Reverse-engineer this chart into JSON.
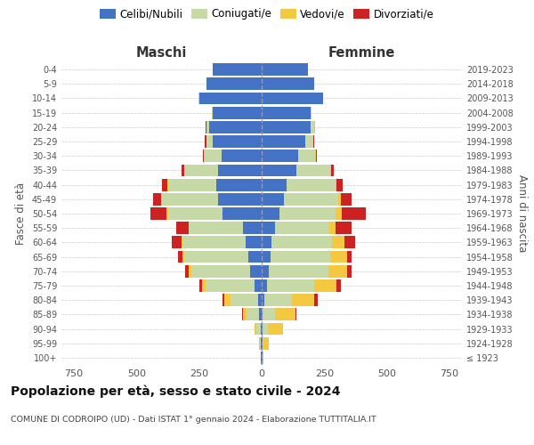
{
  "age_groups": [
    "100+",
    "95-99",
    "90-94",
    "85-89",
    "80-84",
    "75-79",
    "70-74",
    "65-69",
    "60-64",
    "55-59",
    "50-54",
    "45-49",
    "40-44",
    "35-39",
    "30-34",
    "25-29",
    "20-24",
    "15-19",
    "10-14",
    "5-9",
    "0-4"
  ],
  "birth_years": [
    "≤ 1923",
    "1924-1928",
    "1929-1933",
    "1934-1938",
    "1939-1943",
    "1944-1948",
    "1949-1953",
    "1954-1958",
    "1959-1963",
    "1964-1968",
    "1969-1973",
    "1974-1978",
    "1979-1983",
    "1984-1988",
    "1989-1993",
    "1994-1998",
    "1999-2003",
    "2004-2008",
    "2009-2013",
    "2014-2018",
    "2019-2023"
  ],
  "maschi": {
    "celibi": [
      2,
      3,
      5,
      10,
      15,
      30,
      45,
      55,
      65,
      75,
      155,
      175,
      180,
      175,
      160,
      195,
      210,
      195,
      250,
      220,
      195
    ],
    "coniugati": [
      2,
      5,
      15,
      50,
      110,
      195,
      235,
      255,
      250,
      215,
      220,
      225,
      195,
      135,
      70,
      25,
      10,
      3,
      2,
      0,
      0
    ],
    "vedovi": [
      0,
      2,
      8,
      15,
      25,
      15,
      10,
      8,
      5,
      3,
      5,
      3,
      2,
      0,
      0,
      2,
      2,
      0,
      0,
      0,
      0
    ],
    "divorziati": [
      0,
      0,
      2,
      5,
      5,
      10,
      15,
      15,
      40,
      50,
      65,
      30,
      20,
      10,
      5,
      5,
      2,
      0,
      0,
      0,
      0
    ]
  },
  "femmine": {
    "nubili": [
      2,
      3,
      5,
      5,
      10,
      20,
      30,
      35,
      40,
      55,
      70,
      90,
      100,
      140,
      145,
      175,
      195,
      195,
      245,
      210,
      185
    ],
    "coniugate": [
      2,
      5,
      20,
      50,
      110,
      190,
      235,
      240,
      240,
      215,
      225,
      215,
      195,
      135,
      70,
      30,
      15,
      5,
      2,
      0,
      0
    ],
    "vedove": [
      3,
      20,
      60,
      80,
      90,
      90,
      75,
      65,
      50,
      25,
      25,
      10,
      5,
      2,
      2,
      2,
      2,
      0,
      0,
      0,
      0
    ],
    "divorziate": [
      0,
      0,
      2,
      5,
      15,
      15,
      20,
      20,
      45,
      65,
      95,
      45,
      25,
      10,
      5,
      2,
      2,
      0,
      0,
      0,
      0
    ]
  },
  "colors": {
    "celibi": "#4472c4",
    "coniugati": "#c8d9a8",
    "vedovi": "#f5c842",
    "divorziati": "#cc2222"
  },
  "xlim": 800,
  "title": "Popolazione per età, sesso e stato civile - 2024",
  "subtitle": "COMUNE DI CODROIPO (UD) - Dati ISTAT 1° gennaio 2024 - Elaborazione TUTTITALIA.IT",
  "xlabel_left": "Maschi",
  "xlabel_right": "Femmine",
  "ylabel_left": "Fasce di età",
  "ylabel_right": "Anni di nascita",
  "legend_labels": [
    "Celibi/Nubili",
    "Coniugati/e",
    "Vedovi/e",
    "Divorziati/e"
  ],
  "bg_color": "#ffffff",
  "grid_color": "#cccccc"
}
